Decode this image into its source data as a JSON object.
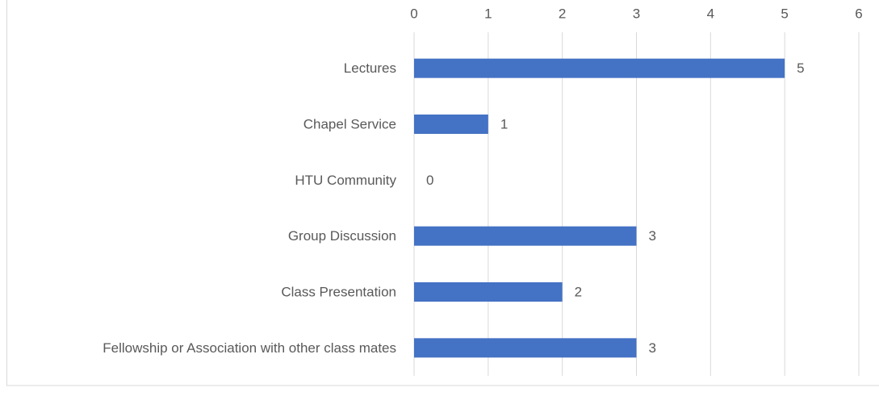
{
  "chart_data": {
    "type": "hbar",
    "categories": [
      "Lectures",
      "Chapel Service",
      "HTU Community",
      "Group Discussion",
      "Class Presentation",
      "Fellowship or Association with other class mates"
    ],
    "values": [
      5,
      1,
      0,
      3,
      2,
      3
    ],
    "color": "#4472c4",
    "xlim": [
      0,
      6
    ],
    "xticks": [
      0,
      1,
      2,
      3,
      4,
      5,
      6
    ],
    "grid": true,
    "data_labels": true
  }
}
